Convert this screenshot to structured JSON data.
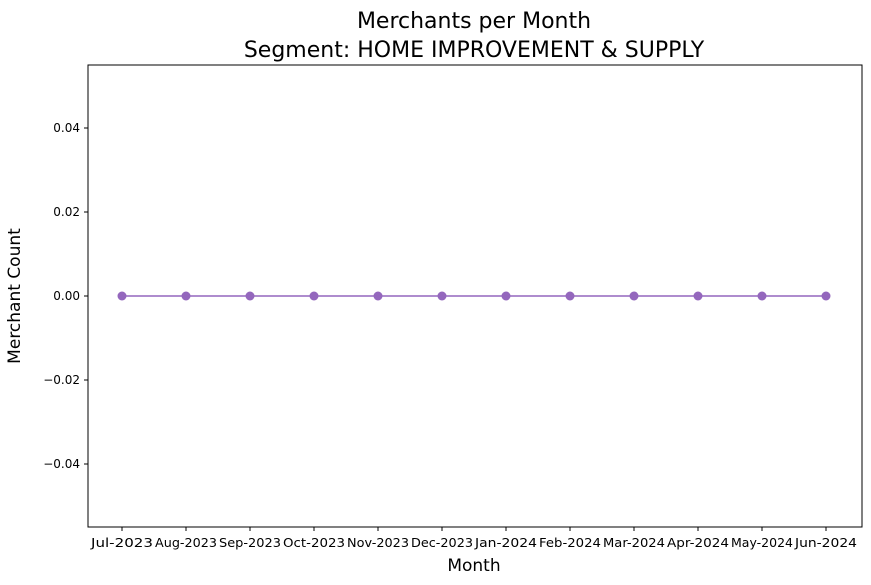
{
  "chart_data": {
    "type": "line",
    "title": "Merchants per Month",
    "subtitle": "Segment: HOME IMPROVEMENT & SUPPLY",
    "xlabel": "Month",
    "ylabel": "Merchant Count",
    "categories": [
      "Jul-2023",
      "Aug-2023",
      "Sep-2023",
      "Oct-2023",
      "Nov-2023",
      "Dec-2023",
      "Jan-2024",
      "Feb-2024",
      "Mar-2024",
      "Apr-2024",
      "May-2024",
      "Jun-2024"
    ],
    "series": [
      {
        "values": [
          0,
          0,
          0,
          0,
          0,
          0,
          0,
          0,
          0,
          0,
          0,
          0
        ],
        "color": "#9467bd",
        "marker": "circle"
      }
    ],
    "ylim": [
      -0.055,
      0.055
    ],
    "yticks": [
      -0.04,
      -0.02,
      0.0,
      0.02,
      0.04
    ],
    "ytick_labels": [
      "−0.04",
      "−0.02",
      "0.00",
      "0.02",
      "0.04"
    ],
    "grid": false,
    "legend": "none"
  }
}
